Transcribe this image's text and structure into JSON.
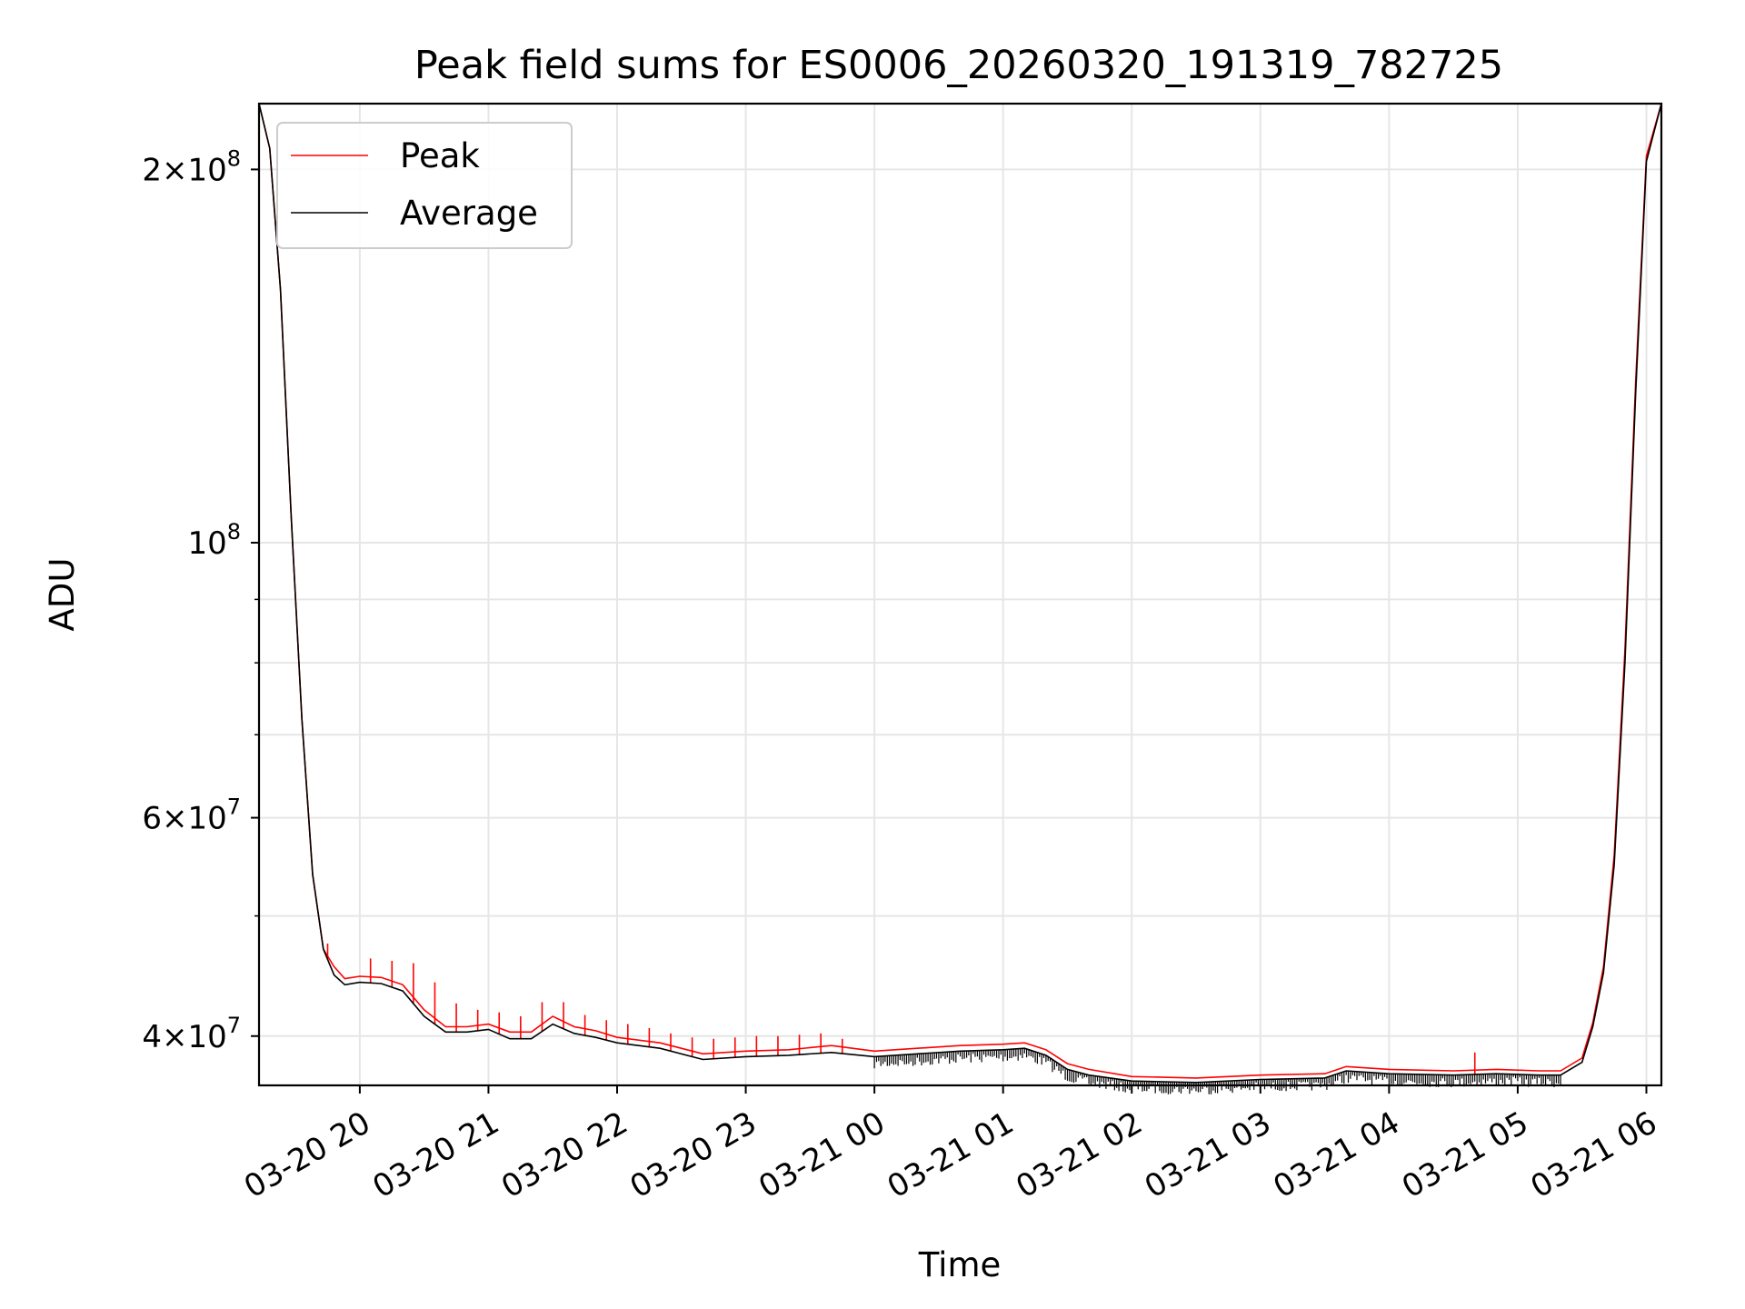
{
  "chart_data": {
    "type": "line",
    "title": "Peak field sums for ES0006_20260320_191319_782725",
    "xlabel": "Time",
    "ylabel": "ADU",
    "yscale": "log",
    "xlim": [
      "2026-03-20 19:13",
      "2026-03-21 06:07"
    ],
    "ylim": [
      36500000,
      226000000
    ],
    "grid": true,
    "legend_position": "top-left",
    "x_ticks": [
      {
        "value": "2026-03-20 20:00",
        "label": "03-20 20"
      },
      {
        "value": "2026-03-20 21:00",
        "label": "03-20 21"
      },
      {
        "value": "2026-03-20 22:00",
        "label": "03-20 22"
      },
      {
        "value": "2026-03-20 23:00",
        "label": "03-20 23"
      },
      {
        "value": "2026-03-21 00:00",
        "label": "03-21 00"
      },
      {
        "value": "2026-03-21 01:00",
        "label": "03-21 01"
      },
      {
        "value": "2026-03-21 02:00",
        "label": "03-21 02"
      },
      {
        "value": "2026-03-21 03:00",
        "label": "03-21 03"
      },
      {
        "value": "2026-03-21 04:00",
        "label": "03-21 04"
      },
      {
        "value": "2026-03-21 05:00",
        "label": "03-21 05"
      },
      {
        "value": "2026-03-21 06:00",
        "label": "03-21 06"
      }
    ],
    "y_ticks": [
      {
        "value": 40000000,
        "mantissa": "4",
        "exponent": "7"
      },
      {
        "value": 60000000,
        "mantissa": "6",
        "exponent": "7"
      },
      {
        "value": 100000000,
        "mantissa": "",
        "exponent": "8"
      },
      {
        "value": 200000000,
        "mantissa": "2",
        "exponent": "8"
      }
    ],
    "y_minor_ticks": [
      50000000,
      70000000,
      80000000,
      90000000
    ],
    "series": [
      {
        "name": "Peak",
        "color": "#ff0000",
        "x": [
          "2026-03-20 19:13",
          "2026-03-20 19:18",
          "2026-03-20 19:23",
          "2026-03-20 19:28",
          "2026-03-20 19:33",
          "2026-03-20 19:38",
          "2026-03-20 19:43",
          "2026-03-20 19:48",
          "2026-03-20 19:53",
          "2026-03-20 20:00",
          "2026-03-20 20:10",
          "2026-03-20 20:20",
          "2026-03-20 20:30",
          "2026-03-20 20:40",
          "2026-03-20 20:50",
          "2026-03-20 21:00",
          "2026-03-20 21:10",
          "2026-03-20 21:20",
          "2026-03-20 21:30",
          "2026-03-20 21:40",
          "2026-03-20 21:50",
          "2026-03-20 22:00",
          "2026-03-20 22:20",
          "2026-03-20 22:40",
          "2026-03-20 23:00",
          "2026-03-20 23:20",
          "2026-03-20 23:40",
          "2026-03-21 00:00",
          "2026-03-21 00:20",
          "2026-03-21 00:40",
          "2026-03-21 01:00",
          "2026-03-21 01:10",
          "2026-03-21 01:20",
          "2026-03-21 01:30",
          "2026-03-21 01:40",
          "2026-03-21 02:00",
          "2026-03-21 02:30",
          "2026-03-21 03:00",
          "2026-03-21 03:30",
          "2026-03-21 03:40",
          "2026-03-21 04:00",
          "2026-03-21 04:30",
          "2026-03-21 04:50",
          "2026-03-21 05:10",
          "2026-03-21 05:20",
          "2026-03-21 05:30",
          "2026-03-21 05:35",
          "2026-03-21 05:40",
          "2026-03-21 05:45",
          "2026-03-21 05:50",
          "2026-03-21 05:55",
          "2026-03-21 06:00",
          "2026-03-21 06:07"
        ],
        "y": [
          226000000,
          208000000,
          160000000,
          105000000,
          72000000,
          54000000,
          47000000,
          45500000,
          44500000,
          44700000,
          44600000,
          44000000,
          42000000,
          40700000,
          40700000,
          40900000,
          40300000,
          40300000,
          41500000,
          40700000,
          40400000,
          39900000,
          39500000,
          38700000,
          38900000,
          39000000,
          39300000,
          38900000,
          39100000,
          39300000,
          39400000,
          39500000,
          39000000,
          38000000,
          37600000,
          37100000,
          37000000,
          37200000,
          37300000,
          37800000,
          37600000,
          37500000,
          37600000,
          37500000,
          37500000,
          38400000,
          41000000,
          45500000,
          56000000,
          82000000,
          135000000,
          205000000,
          226000000
        ],
        "spikes": [
          [
            "2026-03-20 19:45",
            47500000
          ],
          [
            "2026-03-20 20:05",
            46200000
          ],
          [
            "2026-03-20 20:15",
            46000000
          ],
          [
            "2026-03-20 20:25",
            45800000
          ],
          [
            "2026-03-20 20:35",
            44200000
          ],
          [
            "2026-03-20 20:45",
            42500000
          ],
          [
            "2026-03-20 20:55",
            42000000
          ],
          [
            "2026-03-20 21:05",
            41800000
          ],
          [
            "2026-03-20 21:15",
            41500000
          ],
          [
            "2026-03-20 21:25",
            42600000
          ],
          [
            "2026-03-20 21:35",
            42600000
          ],
          [
            "2026-03-20 21:45",
            41600000
          ],
          [
            "2026-03-20 21:55",
            41200000
          ],
          [
            "2026-03-20 22:05",
            40900000
          ],
          [
            "2026-03-20 22:15",
            40600000
          ],
          [
            "2026-03-20 22:25",
            40200000
          ],
          [
            "2026-03-20 22:35",
            39900000
          ],
          [
            "2026-03-20 22:45",
            39800000
          ],
          [
            "2026-03-20 22:55",
            39900000
          ],
          [
            "2026-03-20 23:05",
            40000000
          ],
          [
            "2026-03-20 23:15",
            40000000
          ],
          [
            "2026-03-20 23:25",
            40100000
          ],
          [
            "2026-03-20 23:35",
            40200000
          ],
          [
            "2026-03-20 23:45",
            39800000
          ],
          [
            "2026-03-21 04:40",
            38800000
          ]
        ]
      },
      {
        "name": "Average",
        "color": "#000000",
        "x": [
          "2026-03-20 19:13",
          "2026-03-20 19:18",
          "2026-03-20 19:23",
          "2026-03-20 19:28",
          "2026-03-20 19:33",
          "2026-03-20 19:38",
          "2026-03-20 19:43",
          "2026-03-20 19:48",
          "2026-03-20 19:53",
          "2026-03-20 20:00",
          "2026-03-20 20:10",
          "2026-03-20 20:20",
          "2026-03-20 20:30",
          "2026-03-20 20:40",
          "2026-03-20 20:50",
          "2026-03-20 21:00",
          "2026-03-20 21:10",
          "2026-03-20 21:20",
          "2026-03-20 21:30",
          "2026-03-20 21:40",
          "2026-03-20 21:50",
          "2026-03-20 22:00",
          "2026-03-20 22:20",
          "2026-03-20 22:40",
          "2026-03-20 23:00",
          "2026-03-20 23:20",
          "2026-03-20 23:40",
          "2026-03-21 00:00",
          "2026-03-21 00:20",
          "2026-03-21 00:40",
          "2026-03-21 01:00",
          "2026-03-21 01:10",
          "2026-03-21 01:20",
          "2026-03-21 01:30",
          "2026-03-21 01:40",
          "2026-03-21 02:00",
          "2026-03-21 02:30",
          "2026-03-21 03:00",
          "2026-03-21 03:30",
          "2026-03-21 03:40",
          "2026-03-21 04:00",
          "2026-03-21 04:30",
          "2026-03-21 04:50",
          "2026-03-21 05:10",
          "2026-03-21 05:20",
          "2026-03-21 05:30",
          "2026-03-21 05:35",
          "2026-03-21 05:40",
          "2026-03-21 05:45",
          "2026-03-21 05:50",
          "2026-03-21 05:55",
          "2026-03-21 06:00",
          "2026-03-21 06:07"
        ],
        "y": [
          226000000,
          208000000,
          160000000,
          105000000,
          72000000,
          54000000,
          47000000,
          44800000,
          44000000,
          44200000,
          44100000,
          43500000,
          41500000,
          40300000,
          40300000,
          40500000,
          39800000,
          39800000,
          40900000,
          40200000,
          39900000,
          39500000,
          39100000,
          38300000,
          38500000,
          38600000,
          38800000,
          38500000,
          38700000,
          38900000,
          39000000,
          39100000,
          38600000,
          37600000,
          37200000,
          36800000,
          36700000,
          36900000,
          37000000,
          37500000,
          37300000,
          37200000,
          37300000,
          37200000,
          37200000,
          38100000,
          40700000,
          45000000,
          55000000,
          80000000,
          132000000,
          203000000,
          226000000
        ],
        "dips_range": [
          "2026-03-21 00:00",
          "2026-03-21 05:20"
        ]
      }
    ]
  }
}
